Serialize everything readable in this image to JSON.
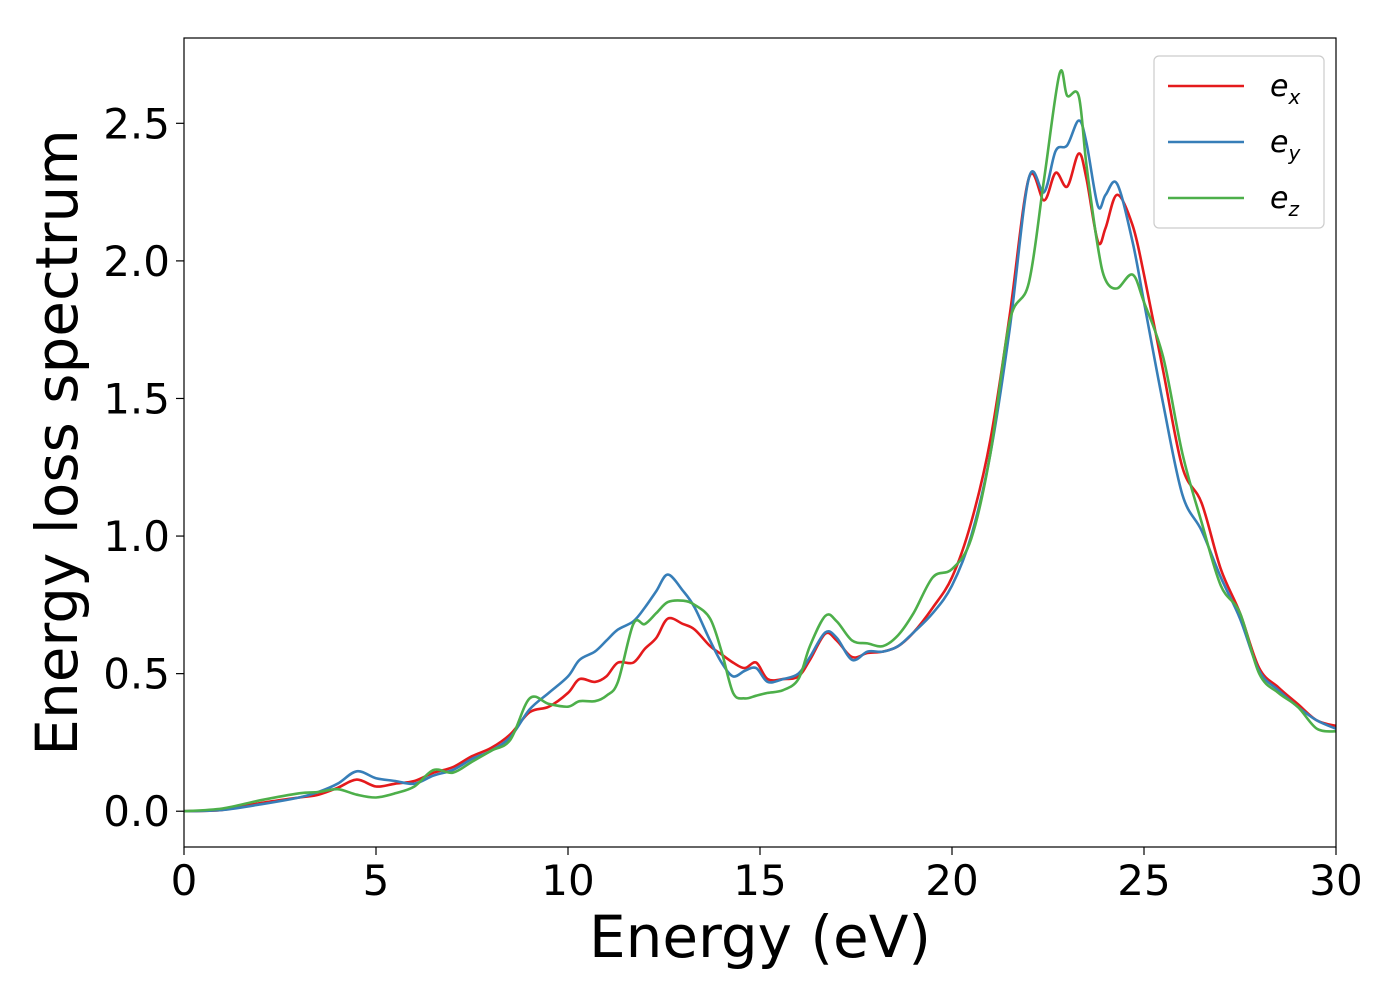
{
  "chart_data": {
    "type": "line",
    "xlabel": "Energy (eV)",
    "ylabel": "Energy loss spectrum",
    "xlim": [
      0,
      30
    ],
    "ylim": [
      -0.13,
      2.81
    ],
    "xticks": [
      0,
      5,
      10,
      15,
      20,
      25,
      30
    ],
    "xtick_labels": [
      "0",
      "5",
      "10",
      "15",
      "20",
      "25",
      "30"
    ],
    "yticks": [
      0.0,
      0.5,
      1.0,
      1.5,
      2.0,
      2.5
    ],
    "ytick_labels": [
      "0.0",
      "0.5",
      "1.0",
      "1.5",
      "2.0",
      "2.5"
    ],
    "grid": false,
    "legend_position": "top-right",
    "series": [
      {
        "name": "e",
        "subscript": "x",
        "color": "#e41a1c",
        "points": [
          [
            0,
            0
          ],
          [
            1,
            0.005
          ],
          [
            2,
            0.03
          ],
          [
            3,
            0.05
          ],
          [
            3.5,
            0.06
          ],
          [
            4,
            0.085
          ],
          [
            4.5,
            0.115
          ],
          [
            5,
            0.09
          ],
          [
            5.5,
            0.1
          ],
          [
            6,
            0.11
          ],
          [
            6.5,
            0.14
          ],
          [
            7,
            0.16
          ],
          [
            7.5,
            0.2
          ],
          [
            8,
            0.23
          ],
          [
            8.5,
            0.28
          ],
          [
            9,
            0.36
          ],
          [
            9.5,
            0.38
          ],
          [
            10,
            0.43
          ],
          [
            10.3,
            0.48
          ],
          [
            10.7,
            0.47
          ],
          [
            11,
            0.49
          ],
          [
            11.3,
            0.54
          ],
          [
            11.7,
            0.54
          ],
          [
            12,
            0.59
          ],
          [
            12.3,
            0.63
          ],
          [
            12.6,
            0.7
          ],
          [
            13,
            0.68
          ],
          [
            13.3,
            0.66
          ],
          [
            13.7,
            0.6
          ],
          [
            14,
            0.57
          ],
          [
            14.3,
            0.54
          ],
          [
            14.6,
            0.52
          ],
          [
            14.9,
            0.54
          ],
          [
            15.2,
            0.48
          ],
          [
            15.6,
            0.48
          ],
          [
            16,
            0.49
          ],
          [
            16.3,
            0.55
          ],
          [
            16.7,
            0.645
          ],
          [
            17,
            0.62
          ],
          [
            17.4,
            0.56
          ],
          [
            17.8,
            0.575
          ],
          [
            18.2,
            0.58
          ],
          [
            18.6,
            0.6
          ],
          [
            19,
            0.65
          ],
          [
            19.5,
            0.74
          ],
          [
            20,
            0.85
          ],
          [
            20.5,
            1.05
          ],
          [
            21,
            1.35
          ],
          [
            21.5,
            1.8
          ],
          [
            22,
            2.3
          ],
          [
            22.4,
            2.22
          ],
          [
            22.7,
            2.32
          ],
          [
            23,
            2.27
          ],
          [
            23.3,
            2.39
          ],
          [
            23.5,
            2.3
          ],
          [
            23.8,
            2.07
          ],
          [
            24,
            2.12
          ],
          [
            24.3,
            2.24
          ],
          [
            24.7,
            2.13
          ],
          [
            25,
            1.95
          ],
          [
            25.5,
            1.6
          ],
          [
            26,
            1.25
          ],
          [
            26.5,
            1.12
          ],
          [
            27,
            0.88
          ],
          [
            27.5,
            0.72
          ],
          [
            28,
            0.52
          ],
          [
            28.5,
            0.45
          ],
          [
            29,
            0.39
          ],
          [
            29.5,
            0.33
          ],
          [
            30,
            0.31
          ]
        ]
      },
      {
        "name": "e",
        "subscript": "y",
        "color": "#377eb8",
        "points": [
          [
            0,
            0
          ],
          [
            1,
            0.005
          ],
          [
            2,
            0.025
          ],
          [
            3,
            0.05
          ],
          [
            3.5,
            0.07
          ],
          [
            4,
            0.1
          ],
          [
            4.5,
            0.145
          ],
          [
            5,
            0.12
          ],
          [
            5.5,
            0.11
          ],
          [
            6,
            0.1
          ],
          [
            6.5,
            0.13
          ],
          [
            7,
            0.15
          ],
          [
            7.5,
            0.19
          ],
          [
            8,
            0.22
          ],
          [
            8.5,
            0.27
          ],
          [
            9,
            0.37
          ],
          [
            9.5,
            0.43
          ],
          [
            10,
            0.49
          ],
          [
            10.3,
            0.55
          ],
          [
            10.7,
            0.58
          ],
          [
            11,
            0.62
          ],
          [
            11.3,
            0.66
          ],
          [
            11.7,
            0.69
          ],
          [
            12,
            0.74
          ],
          [
            12.3,
            0.8
          ],
          [
            12.6,
            0.86
          ],
          [
            13,
            0.8
          ],
          [
            13.3,
            0.74
          ],
          [
            13.7,
            0.62
          ],
          [
            14,
            0.54
          ],
          [
            14.3,
            0.49
          ],
          [
            14.6,
            0.51
          ],
          [
            14.9,
            0.52
          ],
          [
            15.2,
            0.47
          ],
          [
            15.6,
            0.48
          ],
          [
            16,
            0.5
          ],
          [
            16.3,
            0.56
          ],
          [
            16.7,
            0.65
          ],
          [
            17,
            0.63
          ],
          [
            17.4,
            0.55
          ],
          [
            17.8,
            0.58
          ],
          [
            18.2,
            0.58
          ],
          [
            18.6,
            0.6
          ],
          [
            19,
            0.65
          ],
          [
            19.5,
            0.72
          ],
          [
            20,
            0.82
          ],
          [
            20.5,
            1.0
          ],
          [
            21,
            1.3
          ],
          [
            21.5,
            1.75
          ],
          [
            22,
            2.3
          ],
          [
            22.4,
            2.25
          ],
          [
            22.7,
            2.4
          ],
          [
            23,
            2.42
          ],
          [
            23.3,
            2.51
          ],
          [
            23.5,
            2.43
          ],
          [
            23.8,
            2.2
          ],
          [
            24,
            2.24
          ],
          [
            24.3,
            2.28
          ],
          [
            24.7,
            2.07
          ],
          [
            25,
            1.85
          ],
          [
            25.5,
            1.48
          ],
          [
            26,
            1.15
          ],
          [
            26.5,
            1.02
          ],
          [
            27,
            0.85
          ],
          [
            27.5,
            0.7
          ],
          [
            28,
            0.51
          ],
          [
            28.5,
            0.44
          ],
          [
            29,
            0.38
          ],
          [
            29.5,
            0.33
          ],
          [
            30,
            0.3
          ]
        ]
      },
      {
        "name": "e",
        "subscript": "z",
        "color": "#4daf4a",
        "points": [
          [
            0,
            0
          ],
          [
            1,
            0.01
          ],
          [
            2,
            0.04
          ],
          [
            3,
            0.065
          ],
          [
            3.5,
            0.07
          ],
          [
            4,
            0.08
          ],
          [
            4.5,
            0.06
          ],
          [
            5,
            0.05
          ],
          [
            5.5,
            0.065
          ],
          [
            6,
            0.09
          ],
          [
            6.5,
            0.15
          ],
          [
            7,
            0.14
          ],
          [
            7.5,
            0.18
          ],
          [
            8,
            0.22
          ],
          [
            8.5,
            0.26
          ],
          [
            9,
            0.41
          ],
          [
            9.5,
            0.39
          ],
          [
            10,
            0.38
          ],
          [
            10.3,
            0.4
          ],
          [
            10.7,
            0.4
          ],
          [
            11,
            0.42
          ],
          [
            11.3,
            0.47
          ],
          [
            11.7,
            0.68
          ],
          [
            12,
            0.68
          ],
          [
            12.3,
            0.72
          ],
          [
            12.6,
            0.76
          ],
          [
            13,
            0.765
          ],
          [
            13.3,
            0.75
          ],
          [
            13.7,
            0.7
          ],
          [
            14,
            0.58
          ],
          [
            14.3,
            0.43
          ],
          [
            14.6,
            0.41
          ],
          [
            14.9,
            0.42
          ],
          [
            15.2,
            0.43
          ],
          [
            15.6,
            0.44
          ],
          [
            16,
            0.48
          ],
          [
            16.3,
            0.6
          ],
          [
            16.7,
            0.71
          ],
          [
            17,
            0.69
          ],
          [
            17.4,
            0.62
          ],
          [
            17.8,
            0.61
          ],
          [
            18.2,
            0.6
          ],
          [
            18.6,
            0.64
          ],
          [
            19,
            0.72
          ],
          [
            19.5,
            0.85
          ],
          [
            20,
            0.88
          ],
          [
            20.5,
            0.99
          ],
          [
            21,
            1.3
          ],
          [
            21.5,
            1.78
          ],
          [
            22,
            1.92
          ],
          [
            22.4,
            2.3
          ],
          [
            22.8,
            2.68
          ],
          [
            23,
            2.6
          ],
          [
            23.3,
            2.6
          ],
          [
            23.5,
            2.35
          ],
          [
            23.8,
            2.05
          ],
          [
            24,
            1.93
          ],
          [
            24.3,
            1.9
          ],
          [
            24.7,
            1.95
          ],
          [
            25,
            1.85
          ],
          [
            25.5,
            1.65
          ],
          [
            26,
            1.3
          ],
          [
            26.5,
            1.05
          ],
          [
            27,
            0.82
          ],
          [
            27.5,
            0.72
          ],
          [
            28,
            0.5
          ],
          [
            28.5,
            0.43
          ],
          [
            29,
            0.38
          ],
          [
            29.5,
            0.3
          ],
          [
            30,
            0.29
          ]
        ]
      }
    ]
  }
}
